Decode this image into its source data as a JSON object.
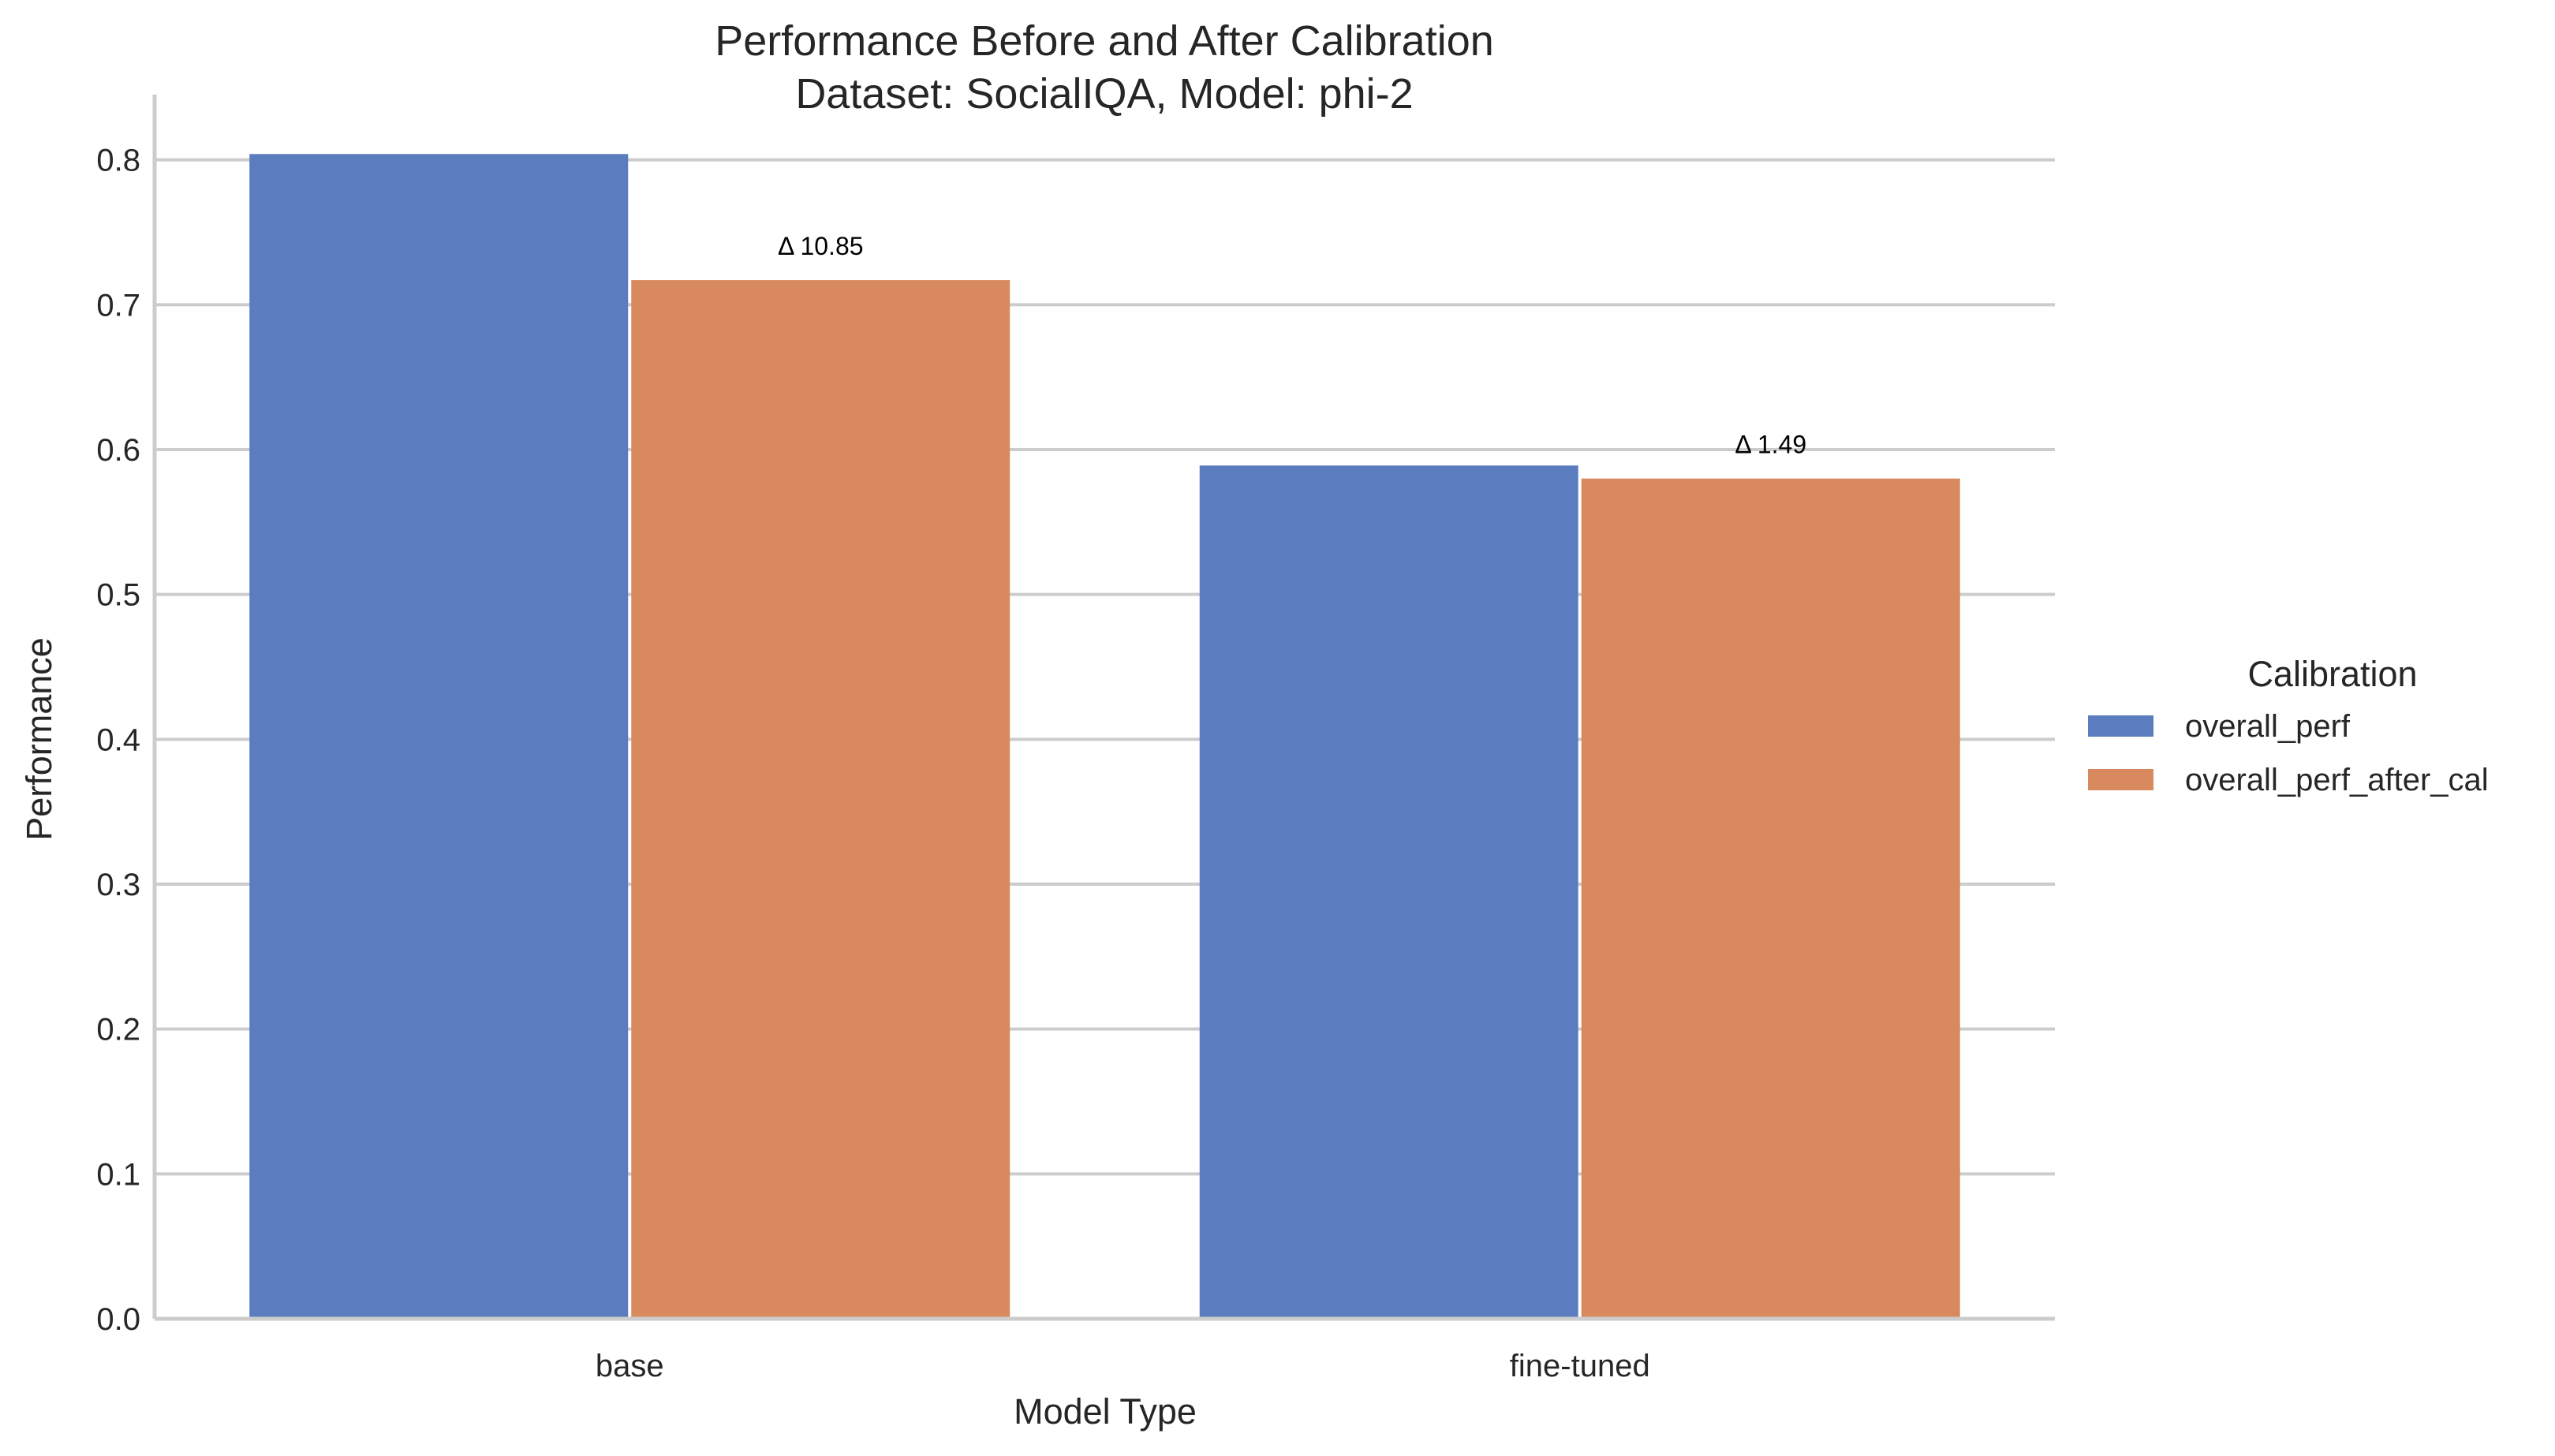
{
  "chart_data": {
    "type": "bar",
    "title": "Performance Before and After Calibration",
    "subtitle": "Dataset: SocialIQA, Model: phi-2",
    "xlabel": "Model Type",
    "ylabel": "Performance",
    "categories": [
      "base",
      "fine-tuned"
    ],
    "series": [
      {
        "name": "overall_perf",
        "color": "#5b7dbf",
        "values": [
          0.804,
          0.589
        ]
      },
      {
        "name": "overall_perf_after_cal",
        "color": "#d8895e",
        "values": [
          0.717,
          0.58
        ]
      }
    ],
    "annotations": [
      {
        "category": "base",
        "text": "Δ 10.85"
      },
      {
        "category": "fine-tuned",
        "text": "Δ 1.49"
      }
    ],
    "ylim": [
      0,
      0.845
    ],
    "yticks": [
      0.0,
      0.1,
      0.2,
      0.3,
      0.4,
      0.5,
      0.6,
      0.7,
      0.8
    ],
    "ytick_labels": [
      "0.0",
      "0.1",
      "0.2",
      "0.3",
      "0.4",
      "0.5",
      "0.6",
      "0.7",
      "0.8"
    ],
    "grid": "horizontal",
    "legend": {
      "title": "Calibration",
      "placement": "right"
    },
    "colors": {
      "grid": "#cccccc",
      "axis": "#cccccc",
      "text": "#262626"
    }
  }
}
